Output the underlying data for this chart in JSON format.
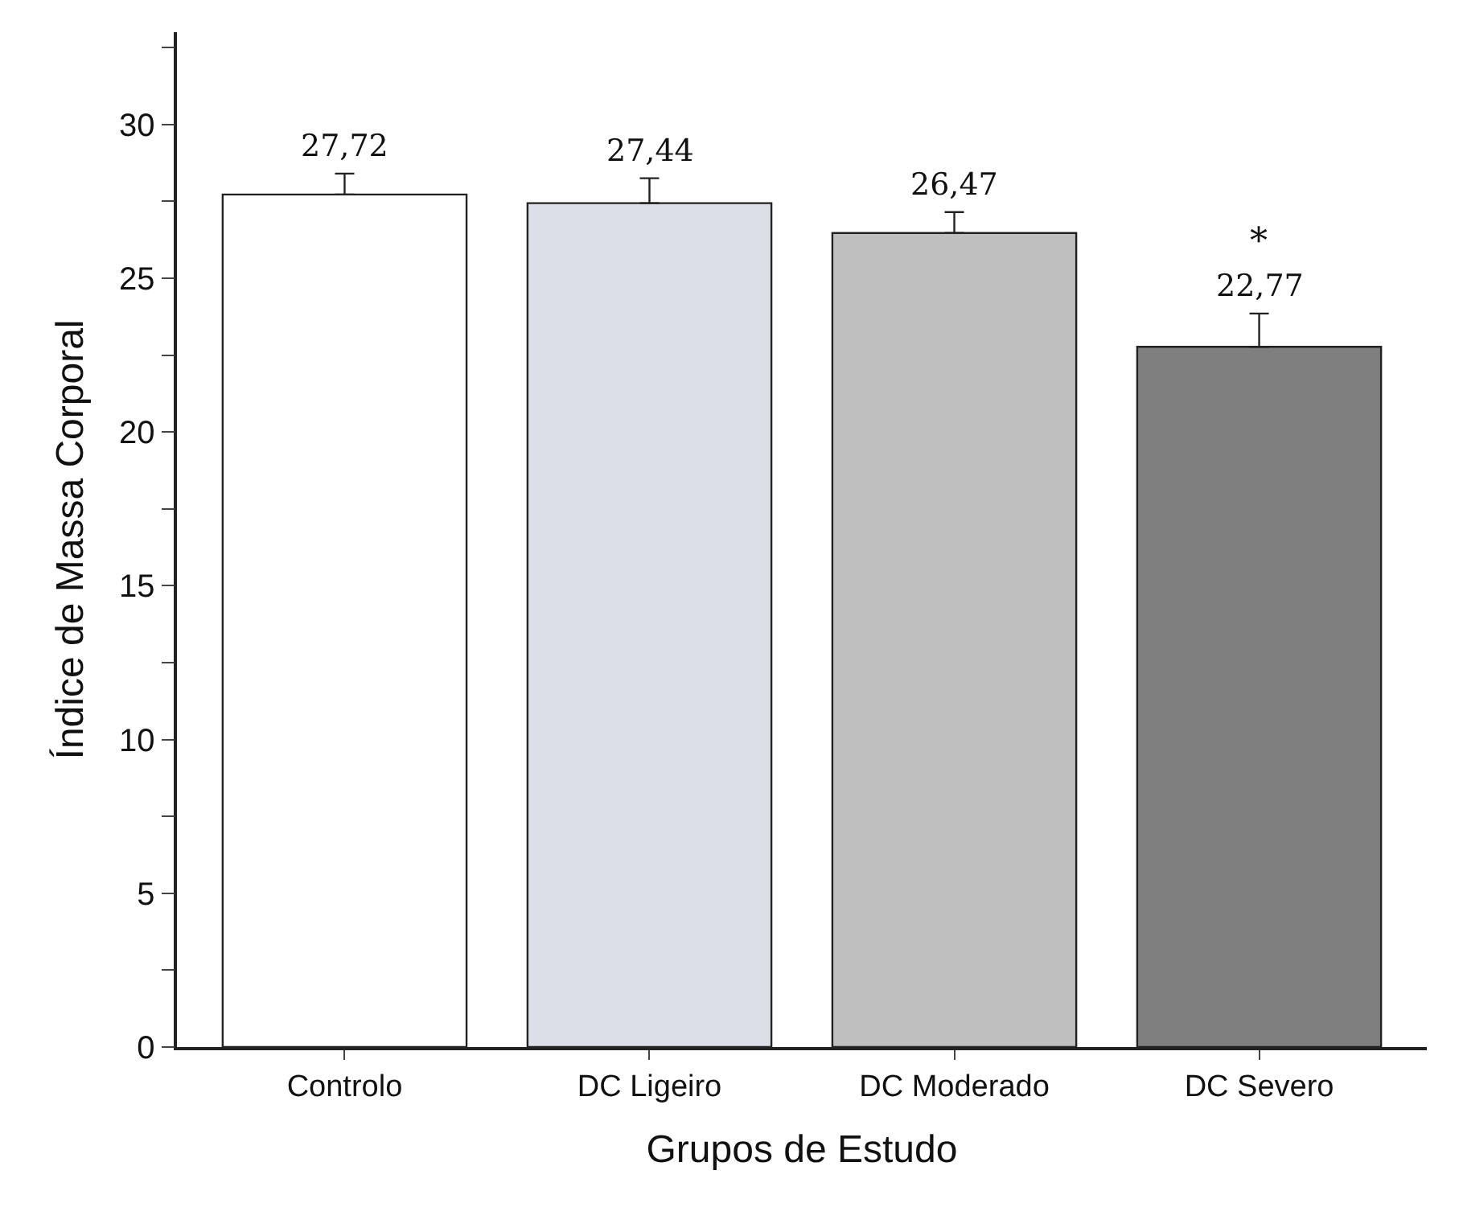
{
  "chart_data": {
    "type": "bar",
    "xlabel": "Grupos de Estudo",
    "ylabel": "Índice de Massa Corporal",
    "categories": [
      "Controlo",
      "DC Ligeiro",
      "DC Moderado",
      "DC Severo"
    ],
    "values": [
      27.72,
      27.44,
      26.47,
      22.77
    ],
    "colors": [
      "#ffffff",
      "#dcdfe8",
      "#bfbfbf",
      "#7f7f7f"
    ],
    "errors": [
      [
        27.72,
        28.4
      ],
      [
        27.44,
        28.25
      ],
      [
        26.47,
        27.15
      ],
      [
        22.77,
        23.85
      ]
    ],
    "value_labels": [
      "27,72",
      "27,44",
      "26,47",
      "22,77"
    ],
    "annotations": [
      "*"
    ],
    "ylim": [
      0,
      33
    ],
    "yticks": [
      0,
      {
        "value": 2.5,
        "label": null
      },
      5,
      {
        "value": 7.5,
        "label": null
      },
      10,
      {
        "value": 12.5,
        "label": null
      },
      15,
      {
        "value": 17.5,
        "label": null
      },
      20,
      {
        "value": 22.5,
        "label": null
      },
      25,
      {
        "value": 27.5,
        "label": null
      },
      30,
      {
        "value": 32.5,
        "label": null
      }
    ]
  }
}
